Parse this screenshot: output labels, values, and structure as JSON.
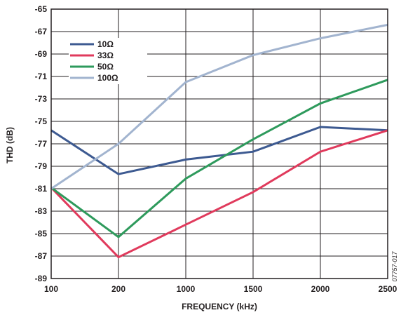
{
  "chart_data": {
    "type": "line",
    "title": "",
    "xlabel": "FREQUENCY (kHz)",
    "ylabel": "THD (dB)",
    "categories": [
      "100",
      "200",
      "1000",
      "1500",
      "2000",
      "2500"
    ],
    "ylim": [
      -89,
      -65
    ],
    "yticks": [
      "-65",
      "-67",
      "-69",
      "-71",
      "-73",
      "-75",
      "-77",
      "-79",
      "-81",
      "-83",
      "-85",
      "-87",
      "-89"
    ],
    "grid": true,
    "legend_position": "top-left",
    "figure_id": "07757-017",
    "series": [
      {
        "name": "10Ω",
        "color": "#3d5a91",
        "values": [
          -75.8,
          -79.7,
          -78.4,
          -77.7,
          -75.5,
          -75.8
        ]
      },
      {
        "name": "33Ω",
        "color": "#e03a5c",
        "values": [
          -80.9,
          -87.1,
          -84.2,
          -81.3,
          -77.7,
          -75.8
        ]
      },
      {
        "name": "50Ω",
        "color": "#2e9a5c",
        "values": [
          -80.9,
          -85.3,
          -80.1,
          -76.6,
          -73.4,
          -71.3
        ]
      },
      {
        "name": "100Ω",
        "color": "#a2b4cf",
        "values": [
          -81.0,
          -77.0,
          -71.5,
          -69.1,
          -67.6,
          -66.4
        ]
      }
    ]
  }
}
